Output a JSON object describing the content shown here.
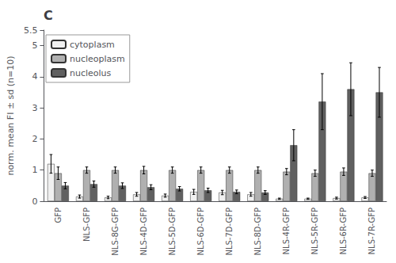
{
  "chart_data": {
    "type": "bar",
    "title": "C",
    "categories": [
      "GFP",
      "NLS-GFP",
      "NLS-8G-GFP",
      "NLS-4D-GFP",
      "NLS-5D-GFP",
      "NLS-6D-GFP",
      "NLS-7D-GFP",
      "NLS-8D-GFP",
      "NLS-4R-GFP",
      "NLS-5R-GFP",
      "NLS-6R-GFP",
      "NLS-7R-GFP"
    ],
    "series": [
      {
        "name": "cytoplasm",
        "color": "#f0f0f0",
        "values": [
          1.2,
          0.15,
          0.12,
          0.22,
          0.18,
          0.3,
          0.28,
          0.22,
          0.08,
          0.08,
          0.1,
          0.12
        ],
        "errors": [
          0.3,
          0.05,
          0.04,
          0.06,
          0.05,
          0.08,
          0.07,
          0.06,
          0.02,
          0.02,
          0.03,
          0.03
        ]
      },
      {
        "name": "nucleoplasm",
        "color": "#b0b0b0",
        "values": [
          0.9,
          1.0,
          1.0,
          1.0,
          1.0,
          1.0,
          1.0,
          1.0,
          0.95,
          0.9,
          0.95,
          0.9
        ],
        "errors": [
          0.2,
          0.1,
          0.1,
          0.12,
          0.1,
          0.1,
          0.1,
          0.1,
          0.1,
          0.1,
          0.12,
          0.1
        ]
      },
      {
        "name": "nucleolus",
        "color": "#606060",
        "values": [
          0.5,
          0.55,
          0.5,
          0.45,
          0.4,
          0.35,
          0.3,
          0.28,
          1.8,
          3.2,
          3.6,
          3.5
        ],
        "errors": [
          0.1,
          0.1,
          0.09,
          0.08,
          0.07,
          0.07,
          0.06,
          0.06,
          0.5,
          0.9,
          0.85,
          0.8
        ]
      }
    ],
    "ylabel": "norm. mean FI ± sd (n=10)",
    "ylim": [
      0,
      5.5
    ],
    "yticks": [
      0,
      1,
      2,
      3,
      4,
      5
    ],
    "legend": "upper left",
    "grid": false
  }
}
